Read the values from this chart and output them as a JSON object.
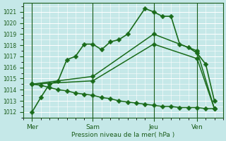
{
  "xlabel": "Pression niveau de la mer( hPa )",
  "bg_color": "#c5e8e8",
  "grid_color": "#ffffff",
  "line_color": "#1a6b1a",
  "dark_line_color": "#1a5c1a",
  "ylim": [
    1011.5,
    1021.8
  ],
  "yticks": [
    1012,
    1013,
    1014,
    1015,
    1016,
    1017,
    1018,
    1019,
    1020,
    1021
  ],
  "xlim": [
    -0.5,
    11.0
  ],
  "day_labels": [
    "Mer",
    "Sam",
    "Jeu",
    "Ven"
  ],
  "day_positions": [
    0,
    3.5,
    7.0,
    9.5
  ],
  "series": [
    {
      "x": [
        0,
        0.5,
        1.0,
        1.5,
        2.0,
        2.5,
        3.0,
        3.5,
        4.0,
        4.5,
        5.0,
        5.5,
        6.5,
        7.0,
        7.5,
        8.0,
        8.5,
        9.0,
        9.5,
        10.0,
        10.5
      ],
      "y": [
        1012.0,
        1013.3,
        1014.5,
        1014.8,
        1016.7,
        1017.0,
        1018.1,
        1018.1,
        1017.6,
        1018.3,
        1018.5,
        1019.0,
        1021.3,
        1021.0,
        1020.6,
        1020.6,
        1018.1,
        1017.8,
        1017.3,
        1016.3,
        1013.0
      ]
    },
    {
      "x": [
        0,
        3.5,
        7.0,
        9.5,
        10.5
      ],
      "y": [
        1014.5,
        1015.2,
        1019.0,
        1017.5,
        1012.3
      ]
    },
    {
      "x": [
        0,
        3.5,
        7.0,
        9.5,
        10.5
      ],
      "y": [
        1014.5,
        1014.8,
        1018.1,
        1016.8,
        1012.3
      ]
    },
    {
      "x": [
        0,
        0.5,
        1.0,
        1.5,
        2.0,
        2.5,
        3.0,
        3.5,
        4.0,
        4.5,
        5.0,
        5.5,
        6.0,
        6.5,
        7.0,
        7.5,
        8.0,
        8.5,
        9.0,
        9.5,
        10.0,
        10.5
      ],
      "y": [
        1014.5,
        1014.4,
        1014.2,
        1014.0,
        1013.9,
        1013.7,
        1013.6,
        1013.5,
        1013.3,
        1013.2,
        1013.0,
        1012.9,
        1012.8,
        1012.7,
        1012.6,
        1012.5,
        1012.5,
        1012.4,
        1012.4,
        1012.4,
        1012.3,
        1012.3
      ]
    }
  ],
  "series_linewidths": [
    1.2,
    1.1,
    1.1,
    1.1
  ],
  "marker_size": 3.5
}
